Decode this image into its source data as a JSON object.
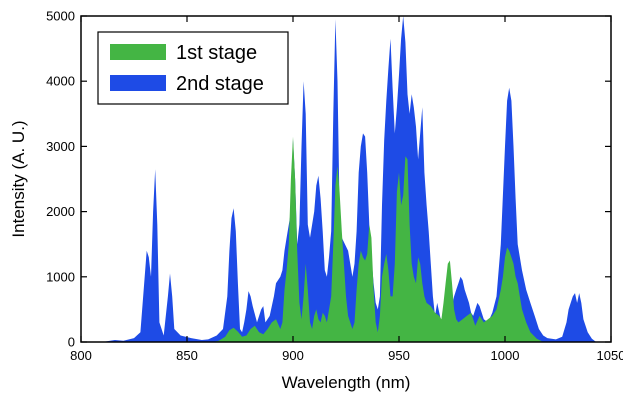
{
  "chart_data": {
    "type": "area",
    "title": "",
    "xlabel": "Wavelength (nm)",
    "ylabel": "Intensity (A. U.)",
    "xlim": [
      800,
      1050
    ],
    "ylim": [
      0,
      5000
    ],
    "xticks": [
      800,
      850,
      900,
      950,
      1000,
      1050
    ],
    "yticks": [
      0,
      1000,
      2000,
      3000,
      4000,
      5000
    ],
    "xtick_labels": [
      "800",
      "850",
      "900",
      "950",
      "1000",
      "1050"
    ],
    "ytick_labels": [
      "0",
      "1000",
      "2000",
      "3000",
      "4000",
      "5000"
    ],
    "grid": false,
    "legend_position": "top-left",
    "series": [
      {
        "name": "2nd stage",
        "color": "#1E4BE6",
        "points": [
          [
            800,
            0
          ],
          [
            810,
            0
          ],
          [
            816,
            30
          ],
          [
            820,
            20
          ],
          [
            825,
            60
          ],
          [
            828,
            150
          ],
          [
            831,
            1400
          ],
          [
            832,
            1300
          ],
          [
            833,
            1000
          ],
          [
            834,
            2000
          ],
          [
            835,
            2650
          ],
          [
            836,
            1800
          ],
          [
            837,
            300
          ],
          [
            839,
            100
          ],
          [
            841,
            700
          ],
          [
            842,
            1050
          ],
          [
            843,
            700
          ],
          [
            844,
            200
          ],
          [
            847,
            100
          ],
          [
            852,
            60
          ],
          [
            857,
            30
          ],
          [
            860,
            40
          ],
          [
            864,
            100
          ],
          [
            867,
            200
          ],
          [
            869,
            700
          ],
          [
            870,
            1400
          ],
          [
            871,
            1900
          ],
          [
            872,
            2050
          ],
          [
            873,
            1700
          ],
          [
            874,
            900
          ],
          [
            875,
            200
          ],
          [
            876,
            150
          ],
          [
            877,
            300
          ],
          [
            878,
            500
          ],
          [
            879,
            780
          ],
          [
            880,
            700
          ],
          [
            881,
            550
          ],
          [
            883,
            300
          ],
          [
            885,
            500
          ],
          [
            886,
            550
          ],
          [
            887,
            300
          ],
          [
            889,
            400
          ],
          [
            891,
            700
          ],
          [
            892,
            900
          ],
          [
            894,
            1000
          ],
          [
            895,
            1100
          ],
          [
            896,
            1400
          ],
          [
            897,
            1600
          ],
          [
            898,
            1800
          ],
          [
            899,
            2000
          ],
          [
            900,
            3100
          ],
          [
            901,
            2500
          ],
          [
            902,
            1500
          ],
          [
            903,
            1800
          ],
          [
            904,
            3000
          ],
          [
            905,
            4000
          ],
          [
            906,
            3500
          ],
          [
            907,
            1800
          ],
          [
            908,
            1600
          ],
          [
            910,
            2000
          ],
          [
            911,
            2400
          ],
          [
            912,
            2550
          ],
          [
            913,
            2200
          ],
          [
            914,
            1700
          ],
          [
            915,
            1100
          ],
          [
            916,
            1000
          ],
          [
            917,
            1300
          ],
          [
            918,
            1700
          ],
          [
            919,
            3500
          ],
          [
            920,
            4950
          ],
          [
            921,
            4000
          ],
          [
            922,
            2000
          ],
          [
            923,
            1600
          ],
          [
            926,
            1400
          ],
          [
            928,
            1000
          ],
          [
            929,
            1200
          ],
          [
            930,
            1700
          ],
          [
            931,
            2600
          ],
          [
            932,
            3000
          ],
          [
            933,
            3200
          ],
          [
            934,
            3150
          ],
          [
            935,
            2600
          ],
          [
            936,
            1800
          ],
          [
            937,
            1300
          ],
          [
            938,
            900
          ],
          [
            939,
            600
          ],
          [
            940,
            500
          ],
          [
            941,
            700
          ],
          [
            942,
            2100
          ],
          [
            943,
            3100
          ],
          [
            944,
            3700
          ],
          [
            945,
            4200
          ],
          [
            946,
            4650
          ],
          [
            947,
            3900
          ],
          [
            948,
            3200
          ],
          [
            949,
            3600
          ],
          [
            950,
            4100
          ],
          [
            951,
            4650
          ],
          [
            952,
            5000
          ],
          [
            953,
            4600
          ],
          [
            954,
            3800
          ],
          [
            955,
            3500
          ],
          [
            956,
            3800
          ],
          [
            957,
            3600
          ],
          [
            958,
            3300
          ],
          [
            959,
            2800
          ],
          [
            960,
            3200
          ],
          [
            961,
            3600
          ],
          [
            962,
            2600
          ],
          [
            963,
            2100
          ],
          [
            964,
            1700
          ],
          [
            965,
            1200
          ],
          [
            966,
            700
          ],
          [
            967,
            400
          ],
          [
            968,
            600
          ],
          [
            969,
            450
          ],
          [
            970,
            300
          ],
          [
            971,
            400
          ],
          [
            973,
            600
          ],
          [
            975,
            550
          ],
          [
            976,
            700
          ],
          [
            977,
            800
          ],
          [
            978,
            900
          ],
          [
            979,
            1000
          ],
          [
            980,
            950
          ],
          [
            981,
            800
          ],
          [
            983,
            600
          ],
          [
            984,
            450
          ],
          [
            985,
            400
          ],
          [
            987,
            600
          ],
          [
            988,
            550
          ],
          [
            990,
            350
          ],
          [
            992,
            300
          ],
          [
            994,
            450
          ],
          [
            996,
            700
          ],
          [
            998,
            1500
          ],
          [
            1000,
            3000
          ],
          [
            1001,
            3700
          ],
          [
            1002,
            3900
          ],
          [
            1003,
            3700
          ],
          [
            1004,
            3000
          ],
          [
            1005,
            2200
          ],
          [
            1006,
            1500
          ],
          [
            1008,
            1100
          ],
          [
            1010,
            800
          ],
          [
            1012,
            600
          ],
          [
            1014,
            400
          ],
          [
            1016,
            200
          ],
          [
            1018,
            100
          ],
          [
            1020,
            60
          ],
          [
            1024,
            40
          ],
          [
            1027,
            80
          ],
          [
            1029,
            300
          ],
          [
            1030,
            500
          ],
          [
            1031,
            600
          ],
          [
            1032,
            700
          ],
          [
            1033,
            750
          ],
          [
            1034,
            600
          ],
          [
            1035,
            750
          ],
          [
            1036,
            600
          ],
          [
            1037,
            350
          ],
          [
            1039,
            150
          ],
          [
            1041,
            50
          ],
          [
            1043,
            0
          ]
        ]
      },
      {
        "name": "1st stage",
        "color": "#44B544",
        "points": [
          [
            800,
            0
          ],
          [
            862,
            0
          ],
          [
            865,
            20
          ],
          [
            868,
            80
          ],
          [
            870,
            180
          ],
          [
            872,
            220
          ],
          [
            874,
            160
          ],
          [
            876,
            80
          ],
          [
            878,
            100
          ],
          [
            880,
            200
          ],
          [
            882,
            250
          ],
          [
            884,
            150
          ],
          [
            886,
            120
          ],
          [
            888,
            200
          ],
          [
            890,
            300
          ],
          [
            892,
            350
          ],
          [
            894,
            200
          ],
          [
            895,
            300
          ],
          [
            896,
            800
          ],
          [
            897,
            1100
          ],
          [
            898,
            1500
          ],
          [
            899,
            2500
          ],
          [
            900,
            3150
          ],
          [
            901,
            2500
          ],
          [
            902,
            1400
          ],
          [
            903,
            600
          ],
          [
            904,
            350
          ],
          [
            905,
            700
          ],
          [
            906,
            1200
          ],
          [
            907,
            800
          ],
          [
            908,
            300
          ],
          [
            909,
            200
          ],
          [
            910,
            400
          ],
          [
            911,
            500
          ],
          [
            912,
            350
          ],
          [
            913,
            300
          ],
          [
            914,
            450
          ],
          [
            915,
            400
          ],
          [
            916,
            300
          ],
          [
            918,
            700
          ],
          [
            919,
            1500
          ],
          [
            920,
            2400
          ],
          [
            921,
            2700
          ],
          [
            922,
            2300
          ],
          [
            923,
            1700
          ],
          [
            924,
            1200
          ],
          [
            925,
            700
          ],
          [
            926,
            400
          ],
          [
            927,
            300
          ],
          [
            928,
            200
          ],
          [
            929,
            300
          ],
          [
            930,
            800
          ],
          [
            931,
            1200
          ],
          [
            932,
            1400
          ],
          [
            933,
            1300
          ],
          [
            934,
            1250
          ],
          [
            935,
            1350
          ],
          [
            936,
            1800
          ],
          [
            937,
            1600
          ],
          [
            938,
            800
          ],
          [
            939,
            300
          ],
          [
            940,
            150
          ],
          [
            941,
            400
          ],
          [
            942,
            1000
          ],
          [
            943,
            1200
          ],
          [
            944,
            1350
          ],
          [
            945,
            1100
          ],
          [
            946,
            700
          ],
          [
            947,
            700
          ],
          [
            948,
            1200
          ],
          [
            949,
            2300
          ],
          [
            950,
            2600
          ],
          [
            951,
            2100
          ],
          [
            952,
            2250
          ],
          [
            953,
            2850
          ],
          [
            954,
            2800
          ],
          [
            955,
            1800
          ],
          [
            956,
            1200
          ],
          [
            957,
            1000
          ],
          [
            958,
            900
          ],
          [
            959,
            1300
          ],
          [
            960,
            1200
          ],
          [
            961,
            900
          ],
          [
            962,
            700
          ],
          [
            963,
            600
          ],
          [
            965,
            550
          ],
          [
            967,
            450
          ],
          [
            969,
            400
          ],
          [
            970,
            350
          ],
          [
            971,
            600
          ],
          [
            972,
            900
          ],
          [
            973,
            1200
          ],
          [
            974,
            1250
          ],
          [
            975,
            900
          ],
          [
            976,
            500
          ],
          [
            977,
            350
          ],
          [
            978,
            300
          ],
          [
            980,
            350
          ],
          [
            982,
            400
          ],
          [
            984,
            450
          ],
          [
            985,
            350
          ],
          [
            986,
            250
          ],
          [
            988,
            400
          ],
          [
            990,
            300
          ],
          [
            992,
            350
          ],
          [
            994,
            400
          ],
          [
            996,
            500
          ],
          [
            998,
            800
          ],
          [
            999,
            1000
          ],
          [
            1000,
            1300
          ],
          [
            1001,
            1450
          ],
          [
            1002,
            1400
          ],
          [
            1003,
            1300
          ],
          [
            1004,
            1200
          ],
          [
            1005,
            1000
          ],
          [
            1006,
            900
          ],
          [
            1007,
            700
          ],
          [
            1008,
            500
          ],
          [
            1010,
            300
          ],
          [
            1012,
            150
          ],
          [
            1015,
            50
          ],
          [
            1018,
            0
          ],
          [
            1050,
            0
          ]
        ]
      }
    ]
  }
}
